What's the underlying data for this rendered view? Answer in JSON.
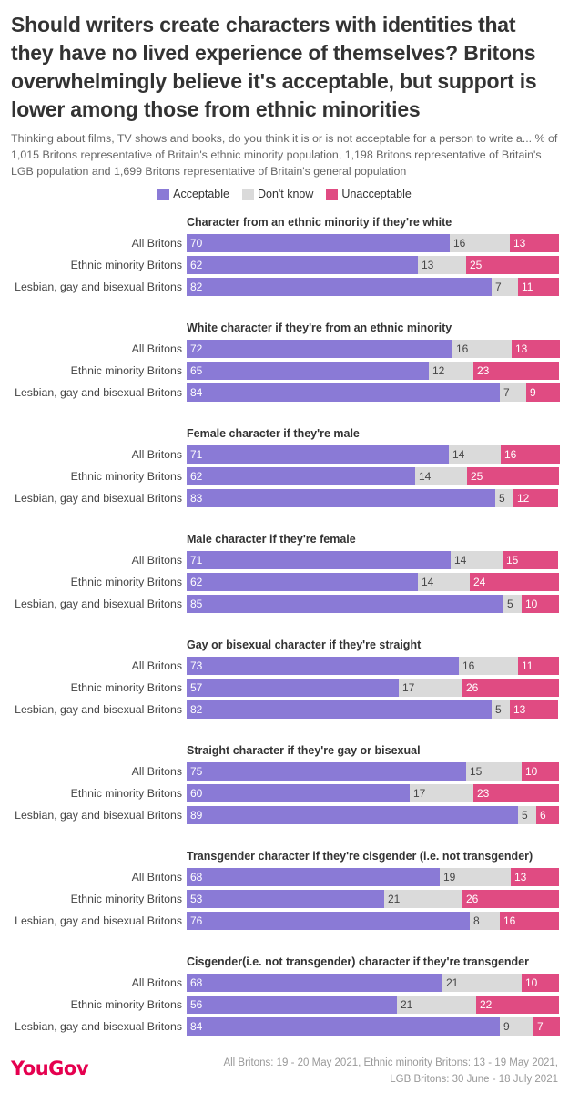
{
  "header": {
    "title": "Should writers create characters with identities that they have no lived experience of themselves? Britons overwhelmingly believe it's acceptable, but support is lower among those from ethnic minorities",
    "subtitle": "Thinking about films, TV shows and books, do you think it is or is not acceptable for a person to write a... % of 1,015 Britons representative of Britain's ethnic minority population, 1,198 Britons representative of Britain's LGB population and 1,699 Britons representative of Britain's general population"
  },
  "colors": {
    "acceptable": "#8a7ad6",
    "dont_know": "#dadada",
    "unacceptable": "#e04b82"
  },
  "footer": {
    "logo": "YouGov",
    "source_line1": "All Britons: 19 - 20 May 2021, Ethnic minority Britons: 13 - 19 May 2021,",
    "source_line2": "LGB Britons: 30 June - 18 July 2021"
  },
  "chart_data": {
    "type": "bar",
    "orientation": "horizontal-stacked",
    "legend": [
      "Acceptable",
      "Don't know",
      "Unacceptable"
    ],
    "legend_position": "top-center",
    "categories": [
      "All Britons",
      "Ethnic minority Britons",
      "Lesbian, gay and bisexual Britons"
    ],
    "groups": [
      {
        "title": "Character from an ethnic minority if they're white",
        "rows": [
          [
            70,
            16,
            13
          ],
          [
            62,
            13,
            25
          ],
          [
            82,
            7,
            11
          ]
        ]
      },
      {
        "title": "White character if they're from an ethnic minority",
        "rows": [
          [
            72,
            16,
            13
          ],
          [
            65,
            12,
            23
          ],
          [
            84,
            7,
            9
          ]
        ]
      },
      {
        "title": "Female character if they're male",
        "rows": [
          [
            71,
            14,
            16
          ],
          [
            62,
            14,
            25
          ],
          [
            83,
            5,
            12
          ]
        ]
      },
      {
        "title": "Male character if they're female",
        "rows": [
          [
            71,
            14,
            15
          ],
          [
            62,
            14,
            24
          ],
          [
            85,
            5,
            10
          ]
        ]
      },
      {
        "title": "Gay or bisexual character if they're straight",
        "rows": [
          [
            73,
            16,
            11
          ],
          [
            57,
            17,
            26
          ],
          [
            82,
            5,
            13
          ]
        ]
      },
      {
        "title": "Straight character if they're gay or bisexual",
        "rows": [
          [
            75,
            15,
            10
          ],
          [
            60,
            17,
            23
          ],
          [
            89,
            5,
            6
          ]
        ]
      },
      {
        "title": "Transgender character if they're cisgender (i.e. not transgender)",
        "rows": [
          [
            68,
            19,
            13
          ],
          [
            53,
            21,
            26
          ],
          [
            76,
            8,
            16
          ]
        ]
      },
      {
        "title": "Cisgender(i.e. not transgender) character if they're transgender",
        "rows": [
          [
            68,
            21,
            10
          ],
          [
            56,
            21,
            22
          ],
          [
            84,
            9,
            7
          ]
        ]
      }
    ]
  }
}
